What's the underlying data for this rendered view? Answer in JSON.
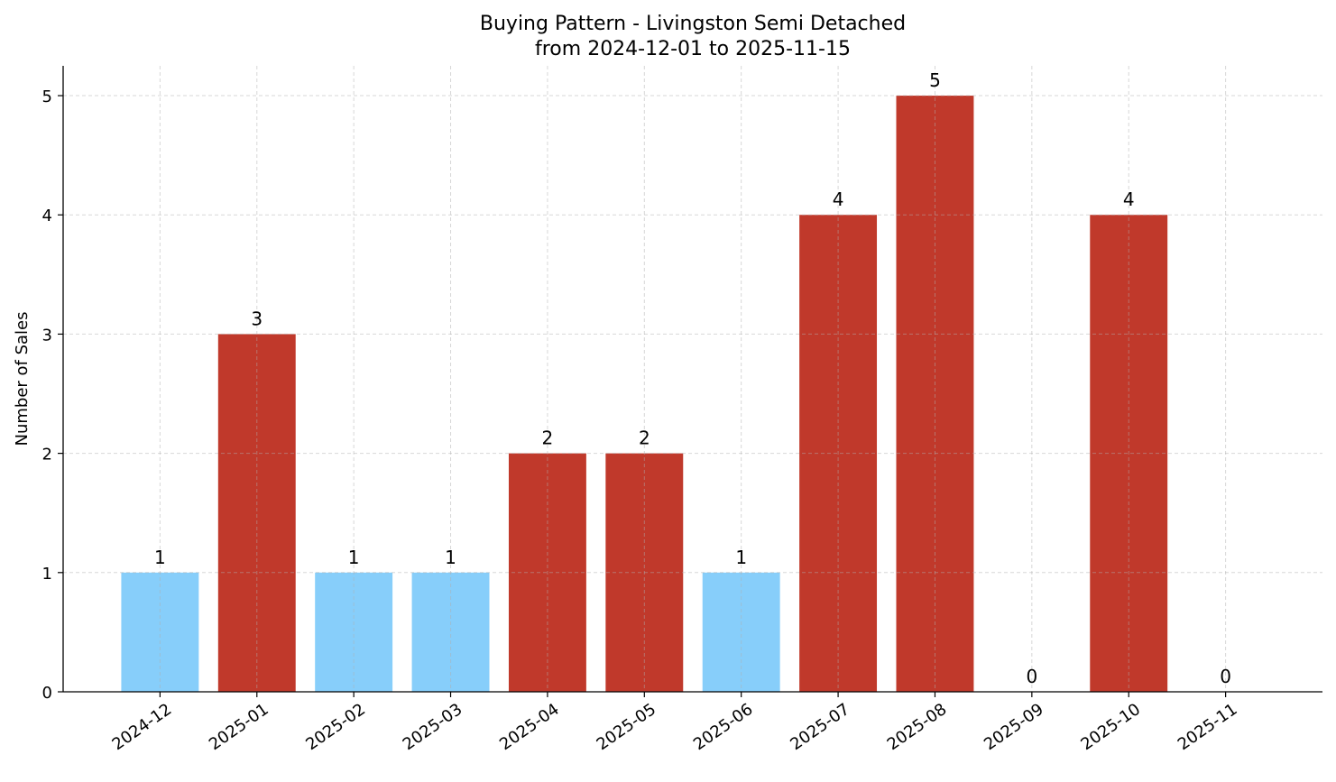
{
  "chart_data": {
    "type": "bar",
    "title": "Buying Pattern - Livingston Semi Detached",
    "subtitle": "from 2024-12-01 to 2025-11-15",
    "xlabel": "",
    "ylabel": "Number of Sales",
    "categories": [
      "2024-12",
      "2025-01",
      "2025-02",
      "2025-03",
      "2025-04",
      "2025-05",
      "2025-06",
      "2025-07",
      "2025-08",
      "2025-09",
      "2025-10",
      "2025-11"
    ],
    "values": [
      1,
      3,
      1,
      1,
      2,
      2,
      1,
      4,
      5,
      0,
      4,
      0
    ],
    "bar_colors": [
      "#87cefa",
      "#c0392b",
      "#87cefa",
      "#87cefa",
      "#c0392b",
      "#c0392b",
      "#87cefa",
      "#c0392b",
      "#c0392b",
      "#c0392b",
      "#c0392b",
      "#c0392b"
    ],
    "yticks": [
      0,
      1,
      2,
      3,
      4,
      5
    ],
    "ylim": [
      0,
      5.25
    ],
    "grid": true,
    "data_labels": true,
    "colors": {
      "low": "#87cefa",
      "high": "#c0392b"
    }
  }
}
